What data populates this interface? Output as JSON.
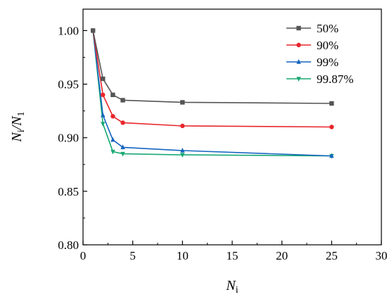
{
  "chart_data": {
    "type": "line",
    "title": "",
    "xlabel": {
      "main": "N",
      "sub": "i"
    },
    "ylabel": {
      "part1_main": "N",
      "part1_sub": "i",
      "separator": "/",
      "part2_main": "N",
      "part2_sub": "1"
    },
    "xlim": [
      0,
      30
    ],
    "ylim": [
      0.8,
      1.02
    ],
    "xticks": [
      "0",
      "5",
      "10",
      "15",
      "20",
      "25",
      "30"
    ],
    "yticks": [
      "0.80",
      "0.85",
      "0.90",
      "0.95",
      "1.00"
    ],
    "grid": false,
    "legend_position": "top-right",
    "series": [
      {
        "name": "50%",
        "color": "#555555",
        "marker": "square",
        "x": [
          1,
          2,
          3,
          4,
          10,
          25
        ],
        "y": [
          1.0,
          0.955,
          0.94,
          0.935,
          0.933,
          0.932
        ]
      },
      {
        "name": "90%",
        "color": "#e8262b",
        "marker": "circle",
        "x": [
          1,
          2,
          3,
          4,
          10,
          25
        ],
        "y": [
          1.0,
          0.94,
          0.92,
          0.914,
          0.911,
          0.91
        ]
      },
      {
        "name": "99%",
        "color": "#1565c0",
        "marker": "triangle-up",
        "x": [
          1,
          2,
          3,
          4,
          10,
          25
        ],
        "y": [
          1.0,
          0.921,
          0.898,
          0.891,
          0.888,
          0.883
        ]
      },
      {
        "name": "99.87%",
        "color": "#19a974",
        "marker": "triangle-down",
        "x": [
          1,
          2,
          3,
          4,
          10,
          25
        ],
        "y": [
          1.0,
          0.913,
          0.887,
          0.885,
          0.884,
          0.883
        ]
      }
    ]
  }
}
